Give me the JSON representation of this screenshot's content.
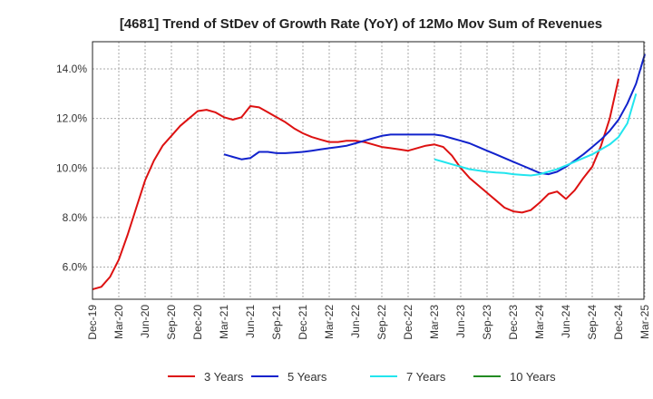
{
  "chart_data": {
    "type": "line",
    "title": "[4681]  Trend of StDev of Growth Rate (YoY) of 12Mo Mov Sum of Revenues",
    "xlabel": "",
    "ylabel": "",
    "x_tick_labels": [
      "Dec-19",
      "Mar-20",
      "Jun-20",
      "Sep-20",
      "Dec-20",
      "Mar-21",
      "Jun-21",
      "Sep-21",
      "Dec-21",
      "Mar-22",
      "Jun-22",
      "Sep-22",
      "Dec-22",
      "Mar-23",
      "Jun-23",
      "Sep-23",
      "Dec-23",
      "Mar-24",
      "Jun-24",
      "Sep-24",
      "Dec-24",
      "Mar-25"
    ],
    "y_ticks": [
      6.0,
      8.0,
      10.0,
      12.0,
      14.0
    ],
    "y_tick_labels": [
      "6.0%",
      "8.0%",
      "10.0%",
      "12.0%",
      "14.0%"
    ],
    "ylim": [
      4.7,
      15.1
    ],
    "grid": true,
    "legend_position": "bottom",
    "series": [
      {
        "name": "3 Years",
        "color": "#dd1111",
        "start_index": 0,
        "values": [
          5.1,
          5.2,
          5.6,
          6.3,
          7.3,
          8.4,
          9.5,
          10.3,
          10.9,
          11.3,
          11.7,
          12.0,
          12.3,
          12.35,
          12.25,
          12.05,
          11.95,
          12.05,
          12.5,
          12.45,
          12.25,
          12.05,
          11.85,
          11.6,
          11.4,
          11.25,
          11.15,
          11.05,
          11.05,
          11.1,
          11.1,
          11.05,
          10.95,
          10.85,
          10.8,
          10.75,
          10.7,
          10.8,
          10.9,
          10.95,
          10.85,
          10.5,
          10.0,
          9.6,
          9.3,
          9.0,
          8.7,
          8.4,
          8.25,
          8.2,
          8.3,
          8.6,
          8.95,
          9.05,
          8.75,
          9.1,
          9.6,
          10.05,
          10.9,
          12.0,
          13.6
        ]
      },
      {
        "name": "5 Years",
        "color": "#1122cc",
        "start_index": 15,
        "values": [
          10.55,
          10.45,
          10.35,
          10.4,
          10.65,
          10.65,
          10.6,
          10.6,
          10.62,
          10.65,
          10.7,
          10.75,
          10.8,
          10.85,
          10.9,
          11.0,
          11.1,
          11.2,
          11.3,
          11.35,
          11.35,
          11.35,
          11.35,
          11.35,
          11.35,
          11.3,
          11.2,
          11.1,
          11.0,
          10.85,
          10.7,
          10.55,
          10.4,
          10.25,
          10.1,
          9.95,
          9.8,
          9.75,
          9.85,
          10.05,
          10.3,
          10.55,
          10.85,
          11.15,
          11.5,
          11.95,
          12.6,
          13.4,
          14.6
        ]
      },
      {
        "name": "7 Years",
        "color": "#22e5ee",
        "start_index": 39,
        "values": [
          10.35,
          10.25,
          10.15,
          10.05,
          9.95,
          9.9,
          9.85,
          9.82,
          9.8,
          9.75,
          9.72,
          9.7,
          9.75,
          9.85,
          9.95,
          10.1,
          10.25,
          10.4,
          10.55,
          10.75,
          10.95,
          11.25,
          11.8,
          13.0
        ]
      },
      {
        "name": "10 Years",
        "color": "#228b22",
        "start_index": 0,
        "values": []
      }
    ]
  }
}
